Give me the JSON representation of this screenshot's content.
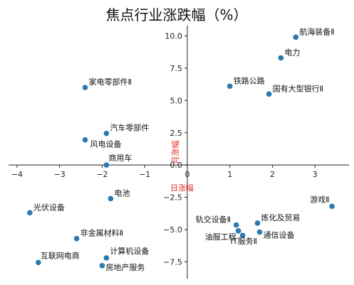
{
  "chart_data": {
    "type": "scatter",
    "title": "焦点行业涨跌幅（%）",
    "xlabel": "日涨幅",
    "ylabel": "月涨幅",
    "xlim": [
      -4.2,
      3.8
    ],
    "ylim": [
      -8.8,
      10.8
    ],
    "xticks": [
      -4,
      -3,
      -2,
      -1,
      0,
      1,
      2,
      3
    ],
    "yticks": [
      -7.5,
      -5.0,
      -2.5,
      0.0,
      2.5,
      5.0,
      7.5,
      10.0
    ],
    "grid": false,
    "marker_color": "#2a7ab0",
    "axis_label_color": "#e0302a",
    "points": [
      {
        "label": "航海装备Ⅱ",
        "x": 2.55,
        "y": 9.9
      },
      {
        "label": "电力",
        "x": 2.2,
        "y": 8.3
      },
      {
        "label": "铁路公路",
        "x": 1.0,
        "y": 6.1
      },
      {
        "label": "国有大型银行Ⅱ",
        "x": 1.92,
        "y": 5.5
      },
      {
        "label": "家电零部件Ⅱ",
        "x": -2.4,
        "y": 6.0
      },
      {
        "label": "汽车零部件",
        "x": -1.9,
        "y": 2.45
      },
      {
        "label": "风电设备",
        "x": -2.4,
        "y": 1.95
      },
      {
        "label": "商用车",
        "x": -1.9,
        "y": 0.0
      },
      {
        "label": "电池",
        "x": -1.8,
        "y": -2.6
      },
      {
        "label": "光伏设备",
        "x": -3.7,
        "y": -3.7
      },
      {
        "label": "非金属材料Ⅱ",
        "x": -2.6,
        "y": -5.7
      },
      {
        "label": "互联网电商",
        "x": -3.5,
        "y": -7.55
      },
      {
        "label": "计算机设备",
        "x": -1.9,
        "y": -7.2
      },
      {
        "label": "房地产服务",
        "x": -2.0,
        "y": -7.8
      },
      {
        "label": "游戏Ⅱ",
        "x": 3.4,
        "y": -3.2
      },
      {
        "label": "炼化及贸易",
        "x": 1.65,
        "y": -4.5
      },
      {
        "label": "轨交设备Ⅱ",
        "x": 1.15,
        "y": -4.65
      },
      {
        "label": "油服工程",
        "x": 1.2,
        "y": -5.1
      },
      {
        "label": "通信设备",
        "x": 1.7,
        "y": -5.2
      },
      {
        "label": "IT服务Ⅱ",
        "x": 1.3,
        "y": -5.45
      }
    ]
  }
}
